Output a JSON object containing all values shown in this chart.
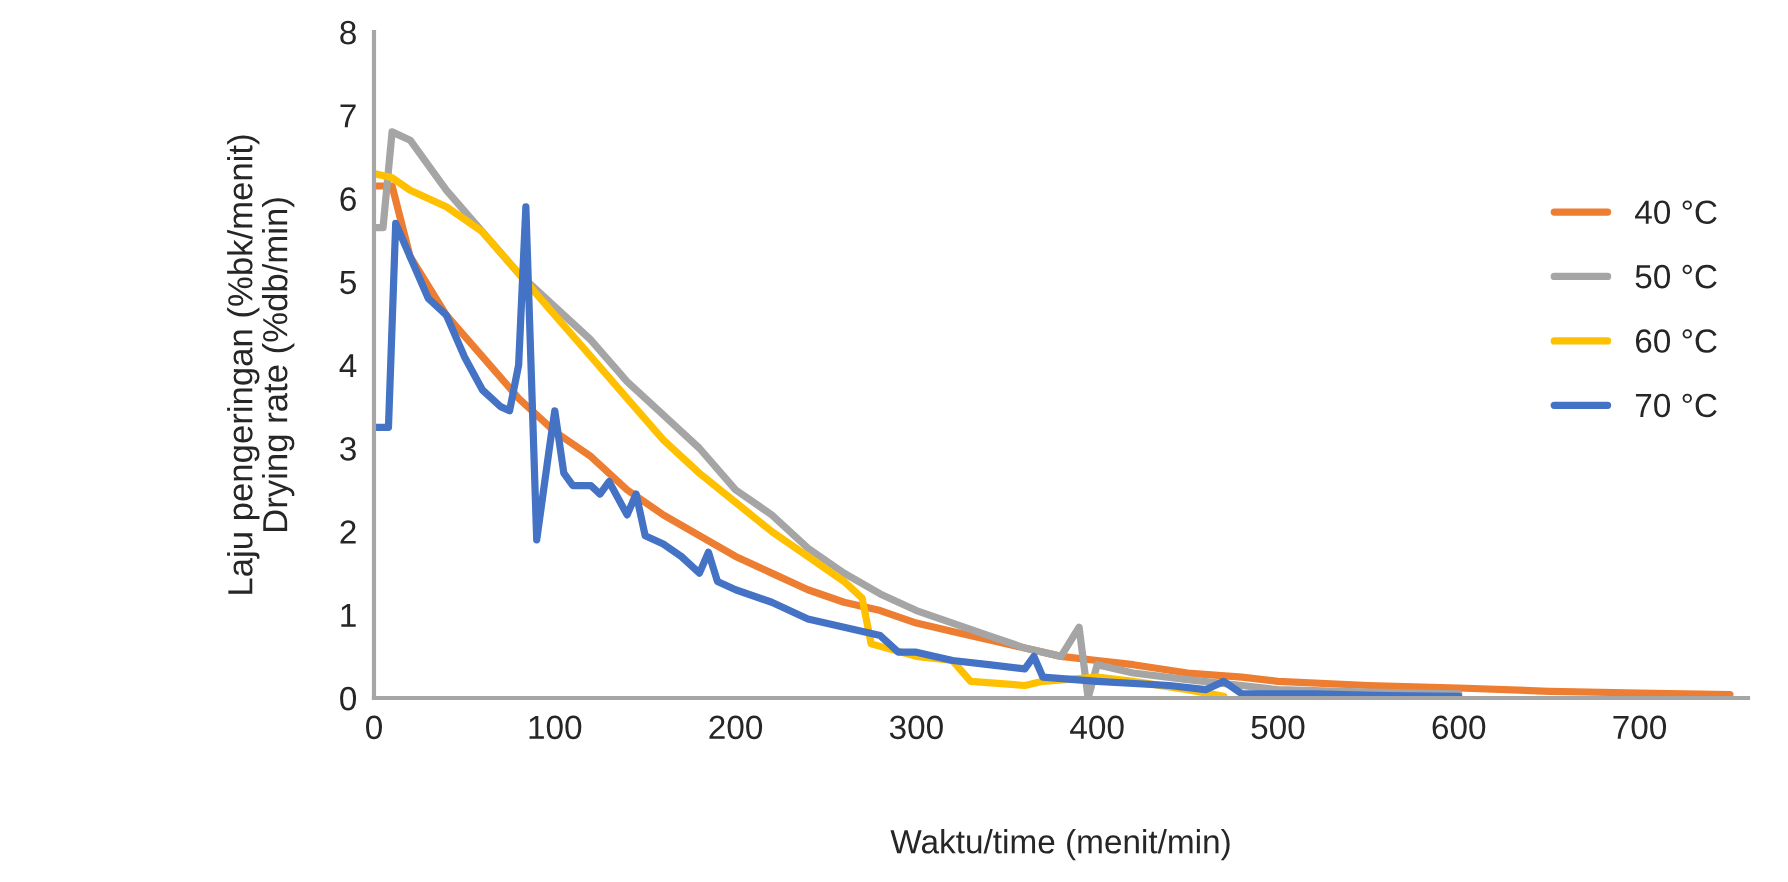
{
  "chart_data": {
    "type": "line",
    "xlabel": "Waktu/time (menit/min)",
    "ylabel": "Laju pengeringan (%bk/menit)\nDrying rate (%db/min)",
    "xlim": [
      0,
      760
    ],
    "xticks": [
      0,
      100,
      200,
      300,
      400,
      500,
      600,
      700
    ],
    "ylim": [
      0,
      8
    ],
    "yticks": [
      0,
      1,
      2,
      3,
      4,
      5,
      6,
      7,
      8
    ],
    "grid": false,
    "legend": "right",
    "marker": "none",
    "line_style": "solid",
    "series": [
      {
        "name": "40 °C",
        "color": "#ed7d31",
        "x": [
          0,
          10,
          20,
          40,
          60,
          80,
          100,
          120,
          140,
          160,
          180,
          200,
          220,
          240,
          260,
          280,
          300,
          320,
          340,
          360,
          380,
          400,
          420,
          450,
          480,
          500,
          550,
          600,
          650,
          700,
          750
        ],
        "values": [
          6.15,
          6.15,
          5.3,
          4.6,
          4.1,
          3.6,
          3.2,
          2.9,
          2.5,
          2.2,
          1.95,
          1.7,
          1.5,
          1.3,
          1.15,
          1.05,
          0.9,
          0.8,
          0.7,
          0.6,
          0.5,
          0.45,
          0.4,
          0.3,
          0.25,
          0.2,
          0.15,
          0.12,
          0.08,
          0.06,
          0.04
        ]
      },
      {
        "name": "50 °C",
        "color": "#a5a5a5",
        "x": [
          0,
          5,
          10,
          20,
          30,
          40,
          60,
          80,
          100,
          120,
          140,
          160,
          180,
          200,
          220,
          240,
          260,
          280,
          300,
          320,
          340,
          360,
          380,
          390,
          395,
          400,
          420,
          450,
          480,
          500,
          550,
          600
        ],
        "values": [
          5.65,
          5.65,
          6.8,
          6.7,
          6.4,
          6.1,
          5.6,
          5.1,
          4.7,
          4.3,
          3.8,
          3.4,
          3.0,
          2.5,
          2.2,
          1.8,
          1.5,
          1.25,
          1.05,
          0.9,
          0.75,
          0.6,
          0.5,
          0.85,
          0.0,
          0.4,
          0.3,
          0.22,
          0.15,
          0.1,
          0.07,
          0.05
        ]
      },
      {
        "name": "60 °C",
        "color": "#ffc000",
        "x": [
          0,
          10,
          20,
          40,
          60,
          80,
          100,
          120,
          140,
          160,
          180,
          200,
          220,
          240,
          260,
          270,
          275,
          300,
          320,
          330,
          360,
          370,
          400,
          420,
          450,
          470
        ],
        "values": [
          6.3,
          6.25,
          6.1,
          5.9,
          5.6,
          5.1,
          4.6,
          4.1,
          3.6,
          3.1,
          2.7,
          2.35,
          2.0,
          1.7,
          1.4,
          1.2,
          0.65,
          0.5,
          0.45,
          0.2,
          0.15,
          0.2,
          0.25,
          0.2,
          0.1,
          0.02
        ]
      },
      {
        "name": "70 °C",
        "color": "#4472c4",
        "x": [
          0,
          8,
          12,
          20,
          30,
          40,
          50,
          60,
          70,
          75,
          80,
          84,
          90,
          97,
          100,
          105,
          110,
          120,
          125,
          130,
          140,
          145,
          150,
          160,
          170,
          180,
          185,
          190,
          200,
          220,
          240,
          260,
          280,
          290,
          300,
          320,
          340,
          360,
          365,
          370,
          400,
          440,
          460,
          470,
          480,
          520,
          560,
          600
        ],
        "values": [
          3.25,
          3.25,
          5.7,
          5.3,
          4.8,
          4.6,
          4.1,
          3.7,
          3.5,
          3.45,
          4.0,
          5.9,
          1.9,
          3.0,
          3.45,
          2.7,
          2.55,
          2.55,
          2.45,
          2.6,
          2.2,
          2.45,
          1.95,
          1.85,
          1.7,
          1.5,
          1.75,
          1.4,
          1.3,
          1.15,
          0.95,
          0.85,
          0.75,
          0.55,
          0.55,
          0.45,
          0.4,
          0.35,
          0.5,
          0.25,
          0.2,
          0.15,
          0.1,
          0.2,
          0.05,
          0.05,
          0.03,
          0.02
        ]
      }
    ]
  }
}
